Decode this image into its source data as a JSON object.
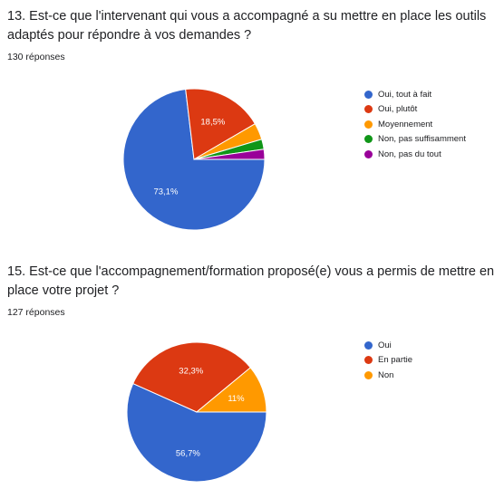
{
  "chart_data": [
    {
      "type": "pie",
      "title": "13. Est-ce que l'intervenant qui vous a accompagné a su mettre en place les outils adaptés pour répondre à vos demandes ?",
      "subtitle": "130 réponses",
      "categories": [
        "Oui, tout à fait",
        "Oui, plutôt",
        "Moyennement",
        "Non, pas suffisamment",
        "Non, pas du tout"
      ],
      "values": [
        73.1,
        18.5,
        3.8,
        2.3,
        2.3
      ],
      "labels": [
        "73,1%",
        "18,5%",
        "",
        "",
        ""
      ],
      "colors": [
        "#3366cc",
        "#dc3912",
        "#ff9900",
        "#109618",
        "#990099"
      ],
      "legend_position": "right"
    },
    {
      "type": "pie",
      "title": "15. Est-ce que l'accompagnement/formation proposé(e) vous a permis de mettre en place votre projet ?",
      "subtitle": "127 réponses",
      "categories": [
        "Oui",
        "En partie",
        "Non"
      ],
      "values": [
        56.7,
        32.3,
        11.0
      ],
      "labels": [
        "56,7%",
        "32,3%",
        "11%"
      ],
      "colors": [
        "#3366cc",
        "#dc3912",
        "#ff9900"
      ],
      "legend_position": "right"
    }
  ]
}
